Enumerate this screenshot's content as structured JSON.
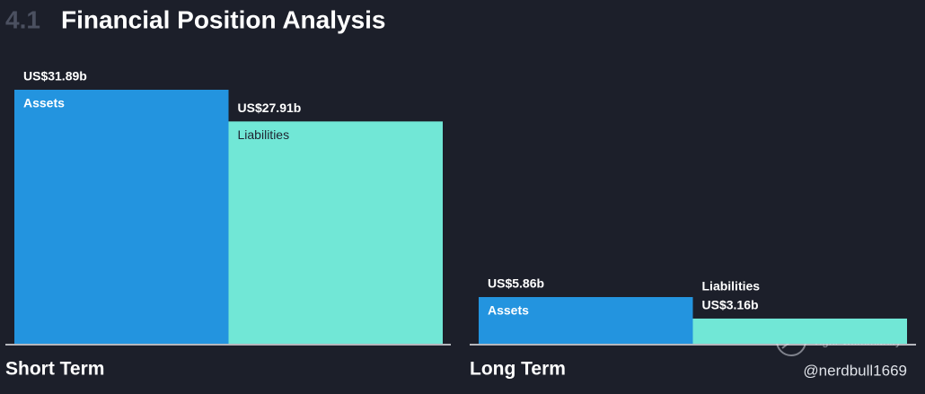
{
  "chart_data": {
    "type": "bar",
    "section_number": "4.1",
    "title": "Financial Position Analysis",
    "categories": [
      "Short Term",
      "Long Term"
    ],
    "series": [
      {
        "name": "Assets",
        "color": "#2394df",
        "values": [
          31.89,
          5.86
        ],
        "value_labels": [
          "US$31.89b",
          "US$5.86b"
        ]
      },
      {
        "name": "Liabilities",
        "color": "#71e7d6",
        "values": [
          27.91,
          3.16
        ],
        "value_labels": [
          "US$27.91b",
          "US$3.16b"
        ]
      }
    ],
    "annotations": [
      "Tiger Community",
      "@nerdbull1669"
    ]
  }
}
